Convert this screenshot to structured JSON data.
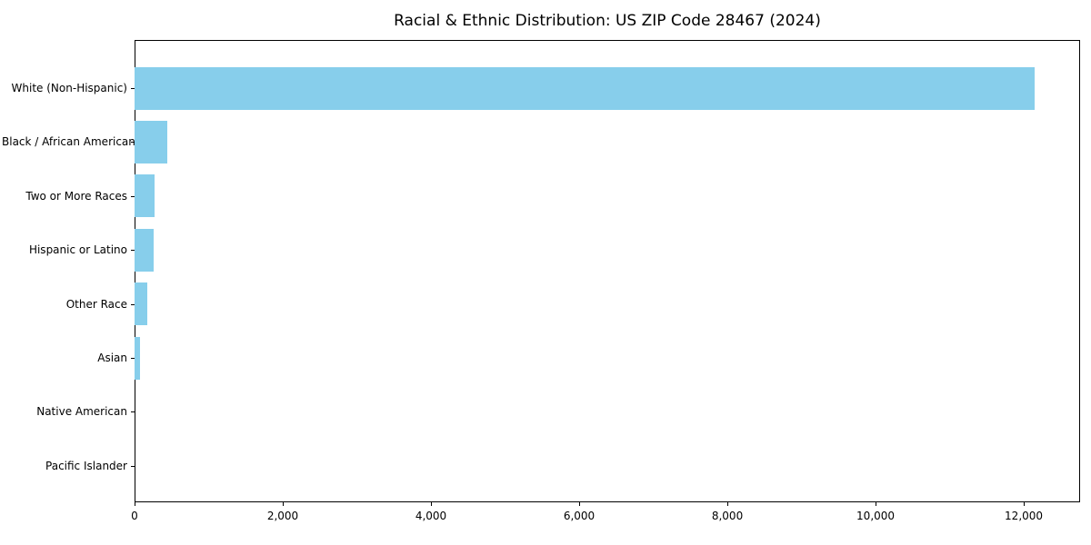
{
  "title": "Racial & Ethnic Distribution: US ZIP Code 28467 (2024)",
  "chart_data": {
    "type": "bar",
    "orientation": "horizontal",
    "title": "Racial & Ethnic Distribution: US ZIP Code 28467 (2024)",
    "xlabel": "",
    "ylabel": "",
    "categories": [
      "White (Non-Hispanic)",
      "Black / African American",
      "Two or More Races",
      "Hispanic or Latino",
      "Other Race",
      "Asian",
      "Native American",
      "Pacific Islander"
    ],
    "values": [
      12150,
      445,
      270,
      255,
      170,
      75,
      0,
      0
    ],
    "xlim": [
      0,
      12760
    ],
    "x_tick_values": [
      0,
      2000,
      4000,
      6000,
      8000,
      10000,
      12000
    ],
    "x_tick_labels": [
      "0",
      "2,000",
      "4,000",
      "6,000",
      "8,000",
      "10,000",
      "12,000"
    ],
    "bar_color": "#87CEEB",
    "text_color": "#000000",
    "grid": false,
    "legend": "none"
  }
}
